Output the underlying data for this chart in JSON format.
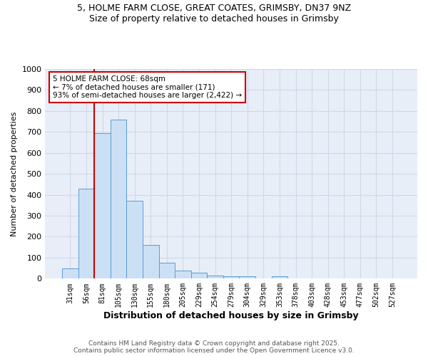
{
  "title_line1": "5, HOLME FARM CLOSE, GREAT COATES, GRIMSBY, DN37 9NZ",
  "title_line2": "Size of property relative to detached houses in Grimsby",
  "xlabel": "Distribution of detached houses by size in Grimsby",
  "ylabel": "Number of detached properties",
  "bar_labels": [
    "31sqm",
    "56sqm",
    "81sqm",
    "105sqm",
    "130sqm",
    "155sqm",
    "180sqm",
    "205sqm",
    "229sqm",
    "254sqm",
    "279sqm",
    "304sqm",
    "329sqm",
    "353sqm",
    "378sqm",
    "403sqm",
    "428sqm",
    "453sqm",
    "477sqm",
    "502sqm",
    "527sqm"
  ],
  "bar_values": [
    50,
    430,
    695,
    760,
    370,
    160,
    75,
    40,
    30,
    15,
    10,
    10,
    0,
    10,
    0,
    0,
    0,
    0,
    0,
    0,
    0
  ],
  "bar_color": "#cce0f5",
  "bar_edge_color": "#5b9bd5",
  "grid_color": "#d0d8e8",
  "background_color": "#ffffff",
  "plot_bg_color": "#e8eef8",
  "vline_x": 1.5,
  "vline_color": "#cc0000",
  "annotation_text": "5 HOLME FARM CLOSE: 68sqm\n← 7% of detached houses are smaller (171)\n93% of semi-detached houses are larger (2,422) →",
  "annotation_box_color": "#cc0000",
  "ylim": [
    0,
    1000
  ],
  "yticks": [
    0,
    100,
    200,
    300,
    400,
    500,
    600,
    700,
    800,
    900,
    1000
  ],
  "footer_line1": "Contains HM Land Registry data © Crown copyright and database right 2025.",
  "footer_line2": "Contains public sector information licensed under the Open Government Licence v3.0."
}
